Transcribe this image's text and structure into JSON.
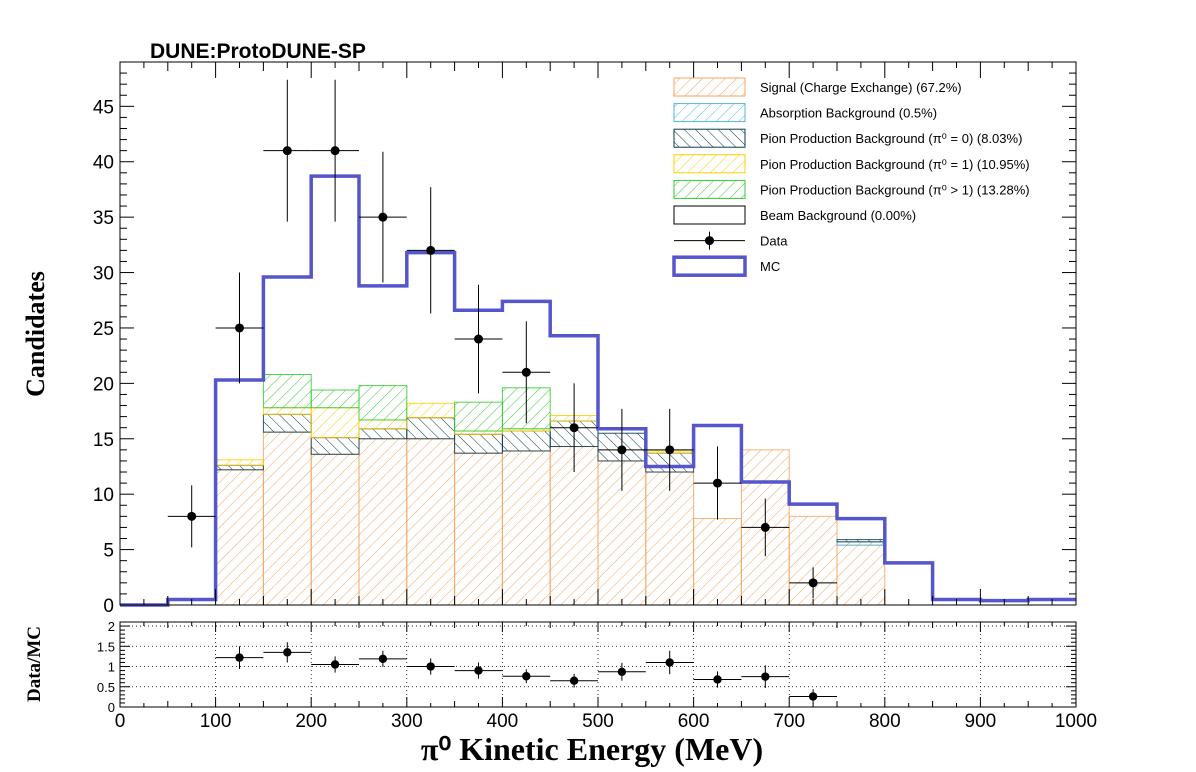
{
  "header": {
    "title": "DUNE:ProtoDUNE-SP"
  },
  "chart_data": [
    {
      "type": "histogram",
      "ylabel": "Candidates",
      "xlim": [
        0,
        1000
      ],
      "ylim": [
        0,
        49
      ],
      "yticks": [
        0,
        5,
        10,
        15,
        20,
        25,
        30,
        35,
        40,
        45
      ],
      "bin_edges": [
        0,
        50,
        100,
        150,
        200,
        250,
        300,
        350,
        400,
        450,
        500,
        550,
        600,
        650,
        700,
        750,
        800,
        850,
        900,
        950,
        1000
      ],
      "series": [
        {
          "name": "Signal (Charge Exchange) (67.2%)",
          "kind": "stack",
          "color": "#f4a460",
          "hatch": "/",
          "values": [
            0,
            0,
            12.2,
            15.6,
            13.6,
            15.0,
            15.0,
            13.7,
            13.9,
            14.3,
            13.0,
            12.0,
            7.8,
            14.0,
            8.0,
            5.4,
            0,
            0,
            0,
            0
          ]
        },
        {
          "name": "Absorption Background (0.5%)",
          "kind": "stack",
          "color": "#4fb8d6",
          "hatch": "/",
          "values": [
            0,
            0,
            0,
            0,
            0,
            0,
            0,
            0,
            0,
            0,
            0,
            0,
            0,
            0,
            0,
            0.3,
            0,
            0,
            0,
            0
          ]
        },
        {
          "name": "Pion Production Background (π⁰ = 0) (8.03%)",
          "kind": "stack",
          "color": "#0a3a4a",
          "hatch": "\\",
          "values": [
            0,
            0,
            0.4,
            1.6,
            1.5,
            0.9,
            1.9,
            1.7,
            1.8,
            2.3,
            2.5,
            1.7,
            0,
            0,
            0,
            0.2,
            0,
            0,
            0,
            0
          ]
        },
        {
          "name": "Pion Production Background (π⁰ = 1) (10.95%)",
          "kind": "stack",
          "color": "#ffcc00",
          "hatch": "/",
          "values": [
            0,
            0,
            0.5,
            0.6,
            2.7,
            0.8,
            1.3,
            0.3,
            0.2,
            0.5,
            0,
            0.2,
            0,
            0,
            0,
            0,
            0,
            0,
            0,
            0
          ]
        },
        {
          "name": "Pion Production Background (π⁰ > 1) (13.28%)",
          "kind": "stack",
          "color": "#33cc33",
          "hatch": "/",
          "values": [
            0,
            0,
            0,
            3.0,
            1.6,
            3.1,
            0,
            2.6,
            3.7,
            0,
            0,
            0,
            0,
            0,
            0,
            0,
            0,
            0,
            0,
            0
          ]
        },
        {
          "name": "Beam Background (0.00%)",
          "kind": "stack",
          "color": "#000000",
          "hatch": "none",
          "values": [
            0,
            0,
            0,
            0,
            0,
            0,
            0,
            0,
            0,
            0,
            0,
            0,
            0,
            0,
            0,
            0,
            0,
            0,
            0,
            0
          ]
        },
        {
          "name": "Data",
          "kind": "points",
          "color": "#000000",
          "x": [
            75,
            125,
            175,
            225,
            275,
            325,
            375,
            425,
            475,
            525,
            575,
            625,
            675,
            725
          ],
          "y": [
            8,
            25,
            41,
            41,
            35,
            32,
            24,
            21,
            16,
            14,
            14,
            11,
            7,
            2
          ],
          "yerr": [
            2.8,
            5,
            6.4,
            6.4,
            5.9,
            5.7,
            4.9,
            4.6,
            4,
            3.7,
            3.7,
            3.3,
            2.6,
            1.4
          ]
        },
        {
          "name": "MC",
          "kind": "step",
          "color": "#5555cc",
          "values": [
            0,
            0.5,
            20.3,
            29.6,
            38.7,
            28.8,
            31.8,
            26.6,
            27.4,
            24.3,
            15.9,
            12.5,
            16.2,
            11.1,
            9.1,
            7.8,
            3.8,
            0.5,
            0.4,
            0.5
          ]
        }
      ],
      "legend": "top-right"
    },
    {
      "type": "scatter",
      "ylabel": "Data/MC",
      "xlabel": "π⁰ Kinetic Energy (MeV)",
      "xlim": [
        0,
        1000
      ],
      "ylim": [
        0,
        2.1
      ],
      "xticks": [
        0,
        100,
        200,
        300,
        400,
        500,
        600,
        700,
        800,
        900,
        1000
      ],
      "yticks": [
        0,
        0.5,
        1,
        1.5,
        2
      ],
      "ytick_labels": [
        "0",
        "0.5",
        "1",
        "1.5",
        "2"
      ],
      "grid": true,
      "x": [
        125,
        175,
        225,
        275,
        325,
        375,
        425,
        475,
        525,
        575,
        625,
        675,
        725
      ],
      "y": [
        1.22,
        1.35,
        1.05,
        1.19,
        1.0,
        0.9,
        0.76,
        0.65,
        0.87,
        1.1,
        0.68,
        0.75,
        0.26
      ],
      "yerr": [
        0.28,
        0.25,
        0.2,
        0.2,
        0.2,
        0.2,
        0.17,
        0.17,
        0.22,
        0.29,
        0.2,
        0.28,
        0.18
      ],
      "xerr": 25
    }
  ]
}
